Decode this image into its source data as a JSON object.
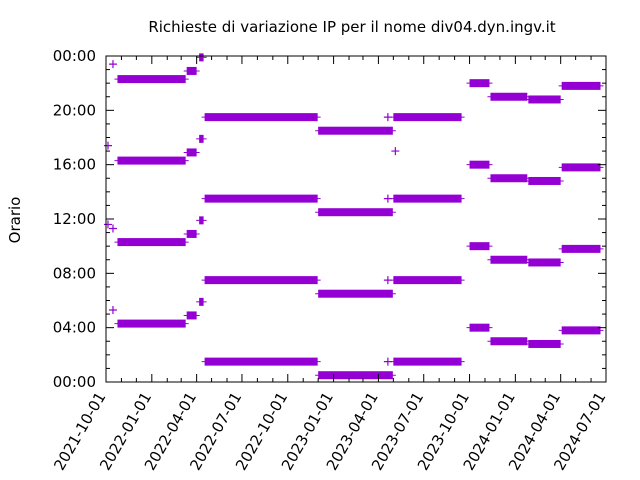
{
  "chart_data": {
    "type": "scatter",
    "title": "Richieste di variazione IP per il nome div04.dyn.ingv.it",
    "xlabel": "",
    "ylabel": "Orario",
    "x_ticks": [
      "2021-10-01",
      "2022-01-01",
      "2022-04-01",
      "2022-07-01",
      "2022-10-01",
      "2023-01-01",
      "2023-04-01",
      "2023-07-01",
      "2023-10-01",
      "2024-01-01",
      "2024-04-01",
      "2024-07-01"
    ],
    "y_ticks": [
      "00:00",
      "04:00",
      "08:00",
      "12:00",
      "16:00",
      "20:00",
      "00:00"
    ],
    "xlim": [
      "2021-10-01",
      "2024-07-01"
    ],
    "ylim": [
      0,
      24
    ],
    "grid": false,
    "color": "#9400D3",
    "segments": [
      {
        "start": "2021-10-24",
        "end": "2022-03-10",
        "hours": [
          4.3,
          10.3,
          16.3,
          22.3
        ]
      },
      {
        "start": "2022-03-12",
        "end": "2022-04-01",
        "hours": [
          4.9,
          10.9,
          16.9,
          22.9
        ]
      },
      {
        "start": "2022-04-06",
        "end": "2022-04-15",
        "hours": [
          5.9,
          11.9,
          17.9,
          23.9
        ]
      },
      {
        "start": "2022-04-17",
        "end": "2022-11-30",
        "hours": [
          1.5,
          7.5,
          13.5,
          19.5
        ]
      },
      {
        "start": "2022-12-01",
        "end": "2023-04-30",
        "hours": [
          0.5,
          6.5,
          12.5,
          18.5
        ]
      },
      {
        "start": "2023-05-01",
        "end": "2023-09-15",
        "hours": [
          1.5,
          7.5,
          13.5,
          19.5
        ]
      },
      {
        "start": "2023-10-01",
        "end": "2023-11-10",
        "hours": [
          4.0,
          10.0,
          16.0,
          22.0
        ]
      },
      {
        "start": "2023-11-12",
        "end": "2024-01-25",
        "hours": [
          3.0,
          9.0,
          15.0,
          21.0
        ]
      },
      {
        "start": "2024-01-27",
        "end": "2024-04-01",
        "hours": [
          2.8,
          8.8,
          14.8,
          20.8
        ]
      },
      {
        "start": "2024-04-03",
        "end": "2024-06-20",
        "hours": [
          3.8,
          9.8,
          15.8,
          21.8
        ]
      }
    ],
    "points": [
      {
        "date": "2021-10-05",
        "hours": [
          11.6,
          17.4
        ]
      },
      {
        "date": "2021-10-15",
        "hours": [
          5.3,
          11.3,
          23.4
        ]
      },
      {
        "date": "2023-04-20",
        "hours": [
          1.5,
          7.5,
          13.5,
          19.5
        ]
      },
      {
        "date": "2023-05-05",
        "hours": [
          17.0
        ]
      }
    ]
  }
}
